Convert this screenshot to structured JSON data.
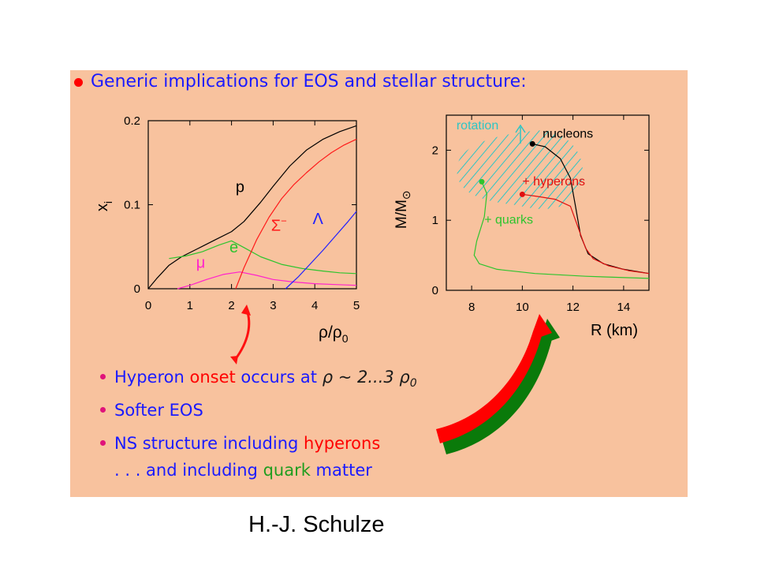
{
  "heading": "Generic implications for EOS and stellar structure:",
  "bullets": {
    "b1": {
      "prefix": "Hyperon ",
      "highlight": "onset",
      "mid": " occurs at ",
      "math": "ρ ~ 2...3 ρ",
      "sub": "0"
    },
    "b2": {
      "text": "Softer EOS"
    },
    "b3": {
      "prefix": "NS structure including ",
      "highlight": "hyperons"
    },
    "b4": {
      "prefix": ". . . and including ",
      "highlight": "quark",
      "suffix": " matter"
    }
  },
  "credit": "H.-J. Schulze",
  "colors": {
    "panel": "#f8c29e",
    "blue_text": "#1a1aff",
    "red": "#ff0000",
    "green": "#1f9d1f",
    "bullet_pink": "#e0137a",
    "dark_green_arrow": "#0a7a0a",
    "cyan": "#2ec4c4",
    "magenta": "#ff22cc"
  },
  "chart_data": [
    {
      "type": "line",
      "xlabel": "ρ/ρ",
      "xlabel_sub": "0",
      "ylabel": "x",
      "ylabel_sub": "i",
      "xlim": [
        0,
        5
      ],
      "ylim": [
        0,
        0.2
      ],
      "xticks": [
        0,
        1,
        2,
        3,
        4,
        5
      ],
      "yticks": [
        {
          "value": 0,
          "label": "0"
        },
        {
          "value": 0.1,
          "label": "0.1"
        },
        {
          "value": 0.2,
          "label": "0.2"
        }
      ],
      "series": [
        {
          "name": "p",
          "color": "#000000",
          "x": [
            0,
            0.2,
            0.5,
            0.8,
            1.2,
            1.6,
            2.0,
            2.3,
            2.7,
            3.0,
            3.4,
            3.8,
            4.2,
            4.6,
            5.0
          ],
          "y": [
            0,
            0.012,
            0.028,
            0.038,
            0.048,
            0.058,
            0.068,
            0.08,
            0.103,
            0.122,
            0.146,
            0.165,
            0.178,
            0.187,
            0.194
          ]
        },
        {
          "name": "e",
          "color": "#2ec42e",
          "x": [
            0.5,
            0.9,
            1.3,
            1.7,
            2.0,
            2.3,
            2.7,
            3.2,
            3.7,
            4.2,
            4.6,
            5.0
          ],
          "y": [
            0.036,
            0.039,
            0.044,
            0.052,
            0.057,
            0.049,
            0.038,
            0.029,
            0.024,
            0.021,
            0.019,
            0.018
          ]
        },
        {
          "name": "μ",
          "color": "#ff22cc",
          "x": [
            0.7,
            1.0,
            1.4,
            1.8,
            2.2,
            2.6,
            3.0,
            3.5,
            4.0,
            4.5,
            5.0
          ],
          "y": [
            0,
            0.004,
            0.011,
            0.017,
            0.02,
            0.016,
            0.011,
            0.008,
            0.006,
            0.005,
            0.004
          ]
        },
        {
          "name": "Σ⁻",
          "color": "#ff1a1a",
          "x": [
            2.1,
            2.3,
            2.6,
            2.9,
            3.2,
            3.5,
            3.8,
            4.1,
            4.4,
            4.7,
            5.0
          ],
          "y": [
            0,
            0.025,
            0.058,
            0.085,
            0.107,
            0.124,
            0.138,
            0.151,
            0.162,
            0.171,
            0.178
          ]
        },
        {
          "name": "Λ",
          "color": "#2020ff",
          "x": [
            3.3,
            3.6,
            3.9,
            4.2,
            4.5,
            4.8,
            5.0
          ],
          "y": [
            0,
            0.014,
            0.03,
            0.046,
            0.063,
            0.08,
            0.092
          ]
        }
      ],
      "labels": [
        {
          "text": "p",
          "color": "#000000",
          "x": 2.1,
          "y": 0.115
        },
        {
          "text": "Σ",
          "sup": "−",
          "color": "#ff1a1a",
          "x": 2.95,
          "y": 0.069
        },
        {
          "text": "Λ",
          "color": "#2020ff",
          "x": 3.95,
          "y": 0.077
        },
        {
          "text": "e",
          "color": "#2ec42e",
          "x": 1.95,
          "y": 0.043
        },
        {
          "text": "μ",
          "color": "#ff22cc",
          "x": 1.15,
          "y": 0.025
        }
      ]
    },
    {
      "type": "line",
      "xlabel": "R (km)",
      "ylabel": "M/M",
      "ylabel_sub": "⊙",
      "xlim": [
        7,
        15
      ],
      "ylim": [
        0,
        2.5
      ],
      "xticks": [
        8,
        10,
        12,
        14
      ],
      "yticks": [
        {
          "value": 0,
          "label": "0"
        },
        {
          "value": 1,
          "label": "1"
        },
        {
          "value": 2,
          "label": "2"
        }
      ],
      "series": [
        {
          "name": "nucleons",
          "color": "#000000",
          "x": [
            10.4,
            10.9,
            11.5,
            11.9,
            12.1,
            12.3,
            12.6,
            13.2,
            14.0,
            15.0
          ],
          "y": [
            2.09,
            2.05,
            1.88,
            1.6,
            1.2,
            0.78,
            0.52,
            0.38,
            0.3,
            0.24
          ]
        },
        {
          "name": "+ hyperons",
          "color": "#e01010",
          "x": [
            10.0,
            10.6,
            11.3,
            11.9,
            12.2,
            12.5,
            12.8,
            13.4,
            14.2,
            15.0
          ],
          "y": [
            1.37,
            1.34,
            1.3,
            1.2,
            0.9,
            0.6,
            0.45,
            0.35,
            0.28,
            0.24
          ]
        },
        {
          "name": "+ quarks",
          "color": "#2ec42e",
          "x": [
            8.4,
            8.6,
            8.5,
            8.2,
            8.1,
            8.3,
            9.0,
            10.5,
            12.5,
            15.0
          ],
          "y": [
            1.55,
            1.38,
            1.05,
            0.7,
            0.5,
            0.38,
            0.3,
            0.24,
            0.2,
            0.17
          ]
        }
      ],
      "markers": [
        {
          "x": 10.4,
          "y": 2.09,
          "color": "#000000"
        },
        {
          "x": 10.0,
          "y": 1.37,
          "color": "#e01010"
        },
        {
          "x": 8.4,
          "y": 1.55,
          "color": "#2ec42e"
        }
      ],
      "labels": [
        {
          "text": "nucleons",
          "color": "#000000",
          "x": 10.8,
          "y": 2.18
        },
        {
          "text": "+ hyperons",
          "color": "#e01010",
          "x": 10.0,
          "y": 1.5
        },
        {
          "text": "+ quarks",
          "color": "#2ec42e",
          "x": 8.5,
          "y": 0.95
        },
        {
          "text": "rotation",
          "color": "#2ec4c4",
          "x": 7.4,
          "y": 2.3
        }
      ]
    }
  ]
}
